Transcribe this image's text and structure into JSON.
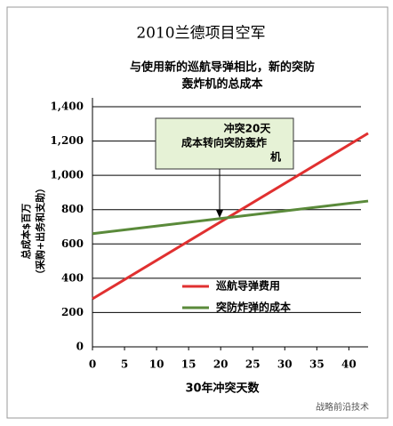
{
  "chart_data": {
    "type": "line",
    "title": "2010兰德项目空军",
    "subtitle": [
      "与使用新的巡航导弹相比，新的突防",
      "轰炸机的总成本"
    ],
    "ylabel": [
      "总成本$百万",
      "（采购+出务和支助）"
    ],
    "xlabel": "30年冲突天数",
    "annotation": [
      "冲突20天",
      "成本转向突防轰炸",
      "机"
    ],
    "watermark": "战略前沿技术",
    "x": [
      0,
      43
    ],
    "series": [
      {
        "name": "巡航导弹费用",
        "color": "#e03030",
        "values": [
          280,
          1245
        ]
      },
      {
        "name": "突防炸弹的成本",
        "color": "#5a8a3a",
        "values": [
          660,
          850
        ]
      }
    ],
    "xlim": [
      0,
      43
    ],
    "xticks": [
      0,
      5,
      10,
      15,
      20,
      25,
      30,
      35,
      40
    ],
    "ylim": [
      0,
      1400
    ],
    "yticks": [
      0,
      200,
      400,
      600,
      800,
      {
        "value": 1000,
        "label": "1,000"
      },
      {
        "value": 1200,
        "label": "1,200"
      },
      {
        "value": 1400,
        "label": "1,400"
      }
    ],
    "grid": true
  }
}
